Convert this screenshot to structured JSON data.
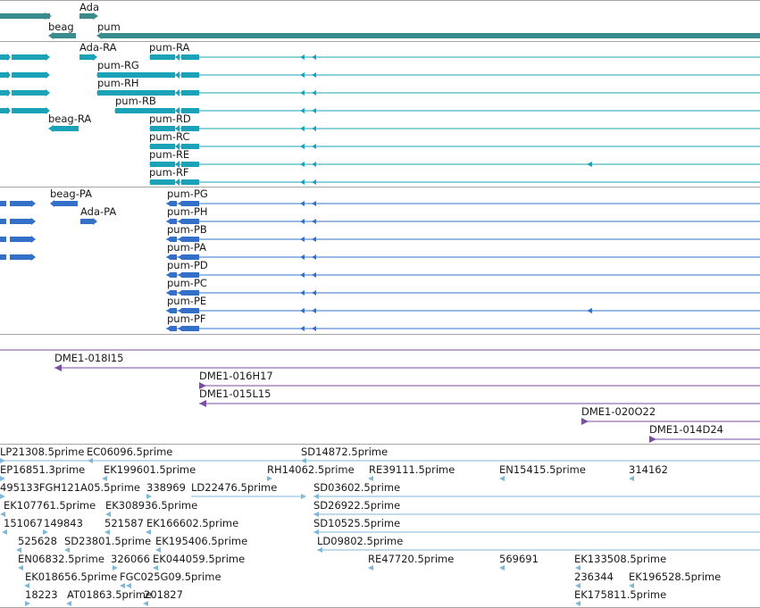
{
  "colors": {
    "gene": "#3a8c8c",
    "transcript": "#1aa3b8",
    "translation": "#3570c8",
    "clone": "#7a4ea3",
    "est": "#7fb7d9",
    "separator": "#a6a6a6"
  },
  "tracks": {
    "genes": {
      "labels": [
        "Ada",
        "beag",
        "pum"
      ]
    },
    "transcripts": {
      "labels": [
        "Ada-RA",
        "pum-RA",
        "pum-RG",
        "pum-RH",
        "pum-RB",
        "beag-RA",
        "pum-RD",
        "pum-RC",
        "pum-RE",
        "pum-RF"
      ]
    },
    "translations": {
      "labels": [
        "beag-PA",
        "Ada-PA",
        "pum-PG",
        "pum-PH",
        "pum-PB",
        "pum-PA",
        "pum-PD",
        "pum-PC",
        "pum-PE",
        "pum-PF"
      ]
    },
    "clones": {
      "labels": [
        "DME1-018I15",
        "DME1-016H17",
        "DME1-015L15",
        "DME1-020O22",
        "DME1-014D24"
      ]
    },
    "ests": {
      "labels": [
        "LP21308.5prime",
        "EC06096.5prime",
        "SD14872.5prime",
        "EP16851.3prime",
        "EK199601.5prime",
        "RH14062.5prime",
        "RE39111.5prime",
        "EN15415.5prime",
        "314162",
        "495133FGH121A05.5prime",
        "338969",
        "LD22476.5prime",
        "SD03602.5prime",
        "EK107761.5prime",
        "EK308936.5prime",
        "SD26922.5prime",
        "151067",
        "149843",
        "521587",
        "EK166602.5prime",
        "SD10525.5prime",
        "525628",
        "SD23801.5prime",
        "EK195406.5prime",
        "LD09802.5prime",
        "EN06832.5prime",
        "326066",
        "EK044059.5prime",
        "RE47720.5prime",
        "569691",
        "EK133508.5prime",
        "EK018656.5prime",
        "FGC025G09.5prime",
        "236344",
        "EK196528.5prime",
        "18223",
        "AT01863.5prime",
        "201827",
        "EK175811.5prime"
      ]
    }
  }
}
